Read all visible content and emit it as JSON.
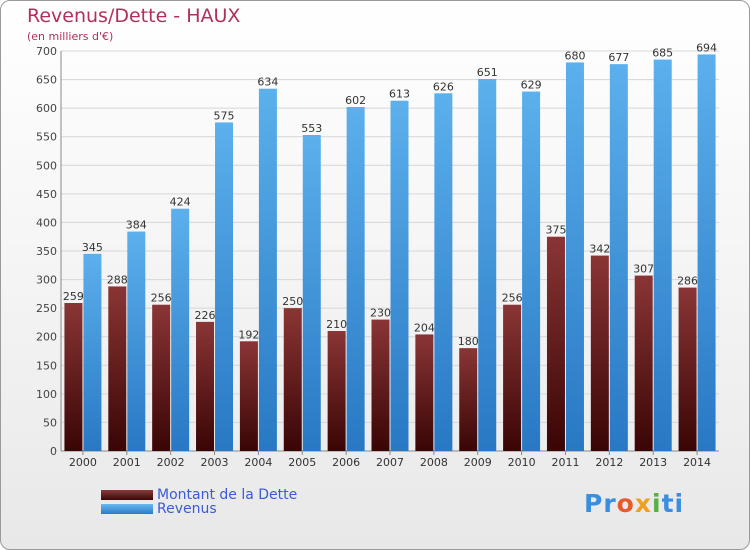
{
  "chart_data": {
    "type": "bar",
    "title": "Revenus/Dette - HAUX",
    "subtitle": "(en milliers d'€)",
    "categories": [
      "2000",
      "2001",
      "2002",
      "2003",
      "2004",
      "2005",
      "2006",
      "2007",
      "2008",
      "2009",
      "2010",
      "2011",
      "2012",
      "2013",
      "2014"
    ],
    "series": [
      {
        "name": "Montant de la Dette",
        "values": [
          259,
          288,
          256,
          226,
          192,
          250,
          210,
          230,
          204,
          180,
          256,
          375,
          342,
          307,
          286
        ],
        "color": "#6a1f1f"
      },
      {
        "name": "Revenus",
        "values": [
          345,
          384,
          424,
          575,
          634,
          553,
          602,
          613,
          626,
          651,
          629,
          680,
          677,
          685,
          694
        ],
        "color": "#3b9be0"
      }
    ],
    "ylim": [
      0,
      700
    ],
    "yticks": [
      0,
      50,
      100,
      150,
      200,
      250,
      300,
      350,
      400,
      450,
      500,
      550,
      600,
      650,
      700
    ],
    "grid": true,
    "legend_position": "bottom-left"
  },
  "legend": {
    "dette_label": "Montant de la Dette",
    "revenus_label": "Revenus",
    "dette_color": "#6a1f1f",
    "revenus_color": "#3b9be0"
  },
  "brand": {
    "p1": "Pr",
    "p2": "o",
    "p3": "x",
    "p4": "i",
    "p5": "ti"
  }
}
